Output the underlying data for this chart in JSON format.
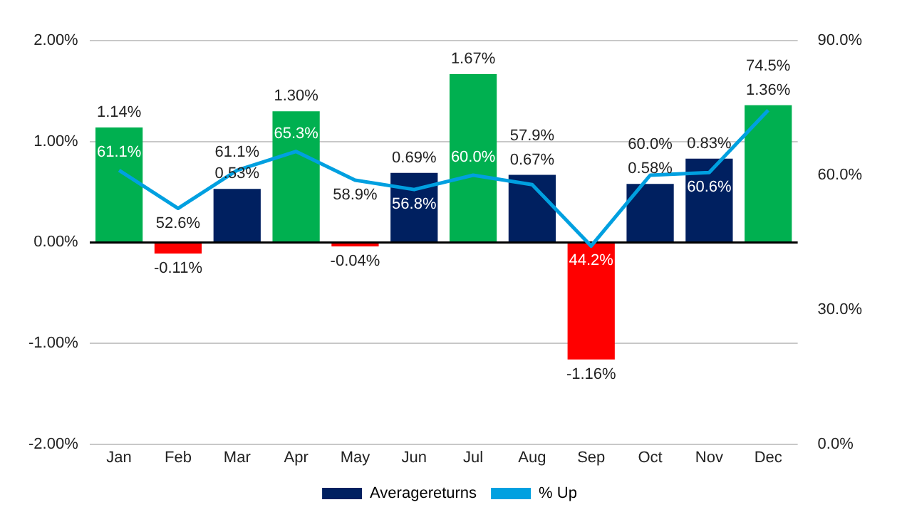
{
  "chart_data": {
    "type": "bar",
    "categories": [
      "Jan",
      "Feb",
      "Mar",
      "Apr",
      "May",
      "Jun",
      "Jul",
      "Aug",
      "Sep",
      "Oct",
      "Nov",
      "Dec"
    ],
    "series": [
      {
        "name": "Averagereturns",
        "color": "#002060",
        "colors": [
          "#00b050",
          "#ff0000",
          "#002060",
          "#00b050",
          "#ff0000",
          "#002060",
          "#00b050",
          "#002060",
          "#ff0000",
          "#002060",
          "#002060",
          "#00b050"
        ],
        "values": [
          1.14,
          -0.11,
          0.53,
          1.3,
          -0.04,
          0.69,
          1.67,
          0.67,
          -1.16,
          0.58,
          0.83,
          1.36
        ],
        "value_labels": [
          "1.14%",
          "-0.11%",
          "0.53%",
          "1.30%",
          "-0.04%",
          "0.69%",
          "1.67%",
          "0.67%",
          "-1.16%",
          "0.58%",
          "0.83%",
          "1.36%"
        ]
      },
      {
        "name": "% Up",
        "type": "line",
        "axis": "y2",
        "color": "#00a0e0",
        "values": [
          61.1,
          52.6,
          61.1,
          65.3,
          58.9,
          56.8,
          60.0,
          57.9,
          44.2,
          60.0,
          60.6,
          74.5
        ],
        "value_labels": [
          "61.1%",
          "52.6%",
          "61.1%",
          "65.3%",
          "58.9%",
          "56.8%",
          "60.0%",
          "57.9%",
          "44.2%",
          "60.0%",
          "60.6%",
          "74.5%"
        ]
      }
    ],
    "ylim": [
      -2,
      2
    ],
    "yticks": [
      {
        "value": -2,
        "label": "-2.00%"
      },
      {
        "value": -1,
        "label": "-1.00%"
      },
      {
        "value": 0,
        "label": "0.00%"
      },
      {
        "value": 1,
        "label": "1.00%"
      },
      {
        "value": 2,
        "label": "2.00%"
      }
    ],
    "y2lim": [
      0,
      90
    ],
    "y2ticks": [
      {
        "value": 0,
        "label": "0.0%"
      },
      {
        "value": 30,
        "label": "30.0%"
      },
      {
        "value": 60,
        "label": "60.0%"
      },
      {
        "value": 90,
        "label": "90.0%"
      }
    ],
    "grid": "y",
    "legend": "bottom",
    "marker": "none"
  }
}
